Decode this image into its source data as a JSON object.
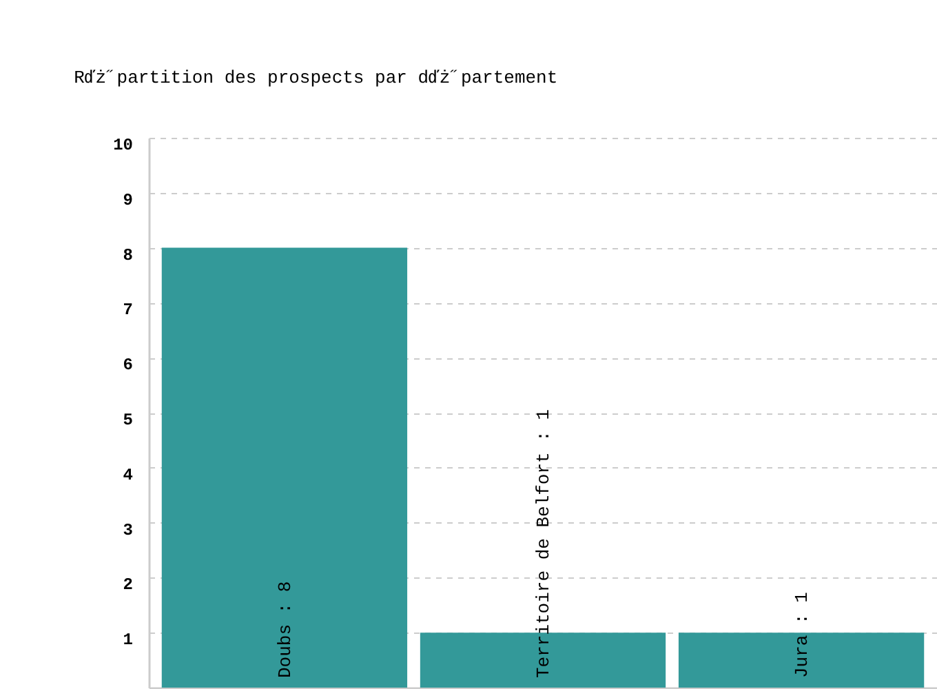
{
  "chart_data": {
    "type": "bar",
    "title": "Rďż˝partition des prospects par dďż˝partement",
    "categories": [
      null,
      null,
      null
    ],
    "values": [
      8,
      1,
      1
    ],
    "value_labels": [
      "Doubs : 8",
      "Territoire de Belfort : 1",
      "Jura : 1"
    ],
    "color": "#339999",
    "ylim": [
      0,
      10
    ],
    "yticks": [
      1,
      2,
      3,
      4,
      5,
      6,
      7,
      8,
      9,
      10
    ],
    "grid": "y",
    "tick_labels": "y"
  }
}
